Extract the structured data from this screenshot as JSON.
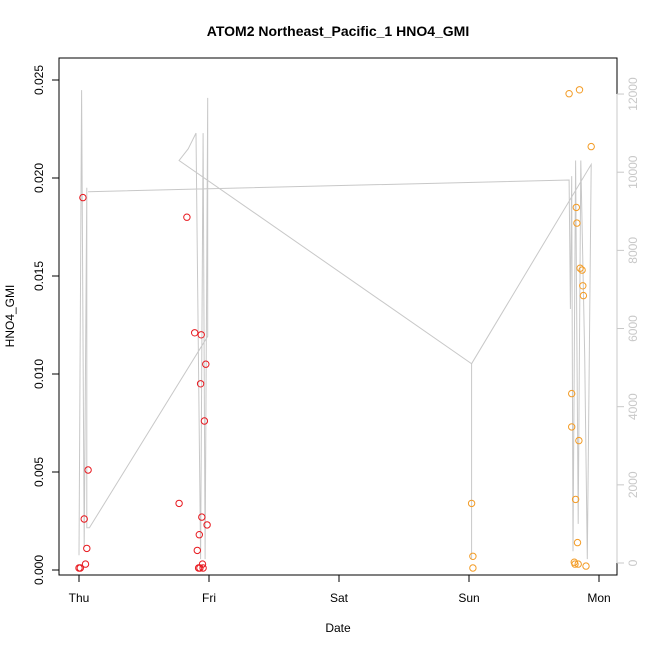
{
  "chart_data": {
    "type": "scatter",
    "title": "ATOM2 Northeast_Pacific_1 HNO4_GMI",
    "xlabel": "Date",
    "ylabel": "HNO4_GMI",
    "ylim": [
      0,
      0.025
    ],
    "y2lim": [
      0,
      12000
    ],
    "xlim": [
      0,
      4
    ],
    "x_ticks": [
      {
        "value": 0,
        "label": "Thu"
      },
      {
        "value": 1,
        "label": "Fri"
      },
      {
        "value": 2,
        "label": "Sat"
      },
      {
        "value": 3,
        "label": "Sun"
      },
      {
        "value": 4,
        "label": "Mon"
      }
    ],
    "y_ticks": [
      {
        "value": 0.0,
        "label": "0.000"
      },
      {
        "value": 0.005,
        "label": "0.005"
      },
      {
        "value": 0.01,
        "label": "0.010"
      },
      {
        "value": 0.015,
        "label": "0.015"
      },
      {
        "value": 0.02,
        "label": "0.020"
      },
      {
        "value": 0.025,
        "label": "0.025"
      }
    ],
    "y2_ticks": [
      {
        "value": 0,
        "label": "0"
      },
      {
        "value": 2000,
        "label": "2000"
      },
      {
        "value": 4000,
        "label": "4000"
      },
      {
        "value": 6000,
        "label": "6000"
      },
      {
        "value": 8000,
        "label": "8000"
      },
      {
        "value": 10000,
        "label": "10000"
      },
      {
        "value": 12000,
        "label": "12000"
      }
    ],
    "colors": {
      "series_red": "#e8191f",
      "series_orange": "#f39c26",
      "altitude_line": "#c8c8c8",
      "axis": "#000000"
    },
    "series": [
      {
        "color": "#e8191f",
        "points": [
          {
            "x": 0.0,
            "y": 0.0001
          },
          {
            "x": 0.01,
            "y": 0.0001
          },
          {
            "x": 0.03,
            "y": 0.019
          },
          {
            "x": 0.04,
            "y": 0.0026
          },
          {
            "x": 0.05,
            "y": 0.0003
          },
          {
            "x": 0.06,
            "y": 0.0011
          },
          {
            "x": 0.07,
            "y": 0.0051
          },
          {
            "x": 0.77,
            "y": 0.0034
          },
          {
            "x": 0.83,
            "y": 0.018
          },
          {
            "x": 0.89,
            "y": 0.0121
          },
          {
            "x": 0.91,
            "y": 0.001
          },
          {
            "x": 0.92,
            "y": 0.0001
          },
          {
            "x": 0.925,
            "y": 0.0018
          },
          {
            "x": 0.93,
            "y": 0.0001
          },
          {
            "x": 0.935,
            "y": 0.0095
          },
          {
            "x": 0.94,
            "y": 0.012
          },
          {
            "x": 0.945,
            "y": 0.0027
          },
          {
            "x": 0.95,
            "y": 0.0003
          },
          {
            "x": 0.955,
            "y": 0.0001
          },
          {
            "x": 0.965,
            "y": 0.0076
          },
          {
            "x": 0.975,
            "y": 0.0105
          },
          {
            "x": 0.985,
            "y": 0.0023
          }
        ]
      },
      {
        "color": "#f39c26",
        "points": [
          {
            "x": 3.02,
            "y": 0.0034
          },
          {
            "x": 3.03,
            "y": 0.0007
          },
          {
            "x": 3.03,
            "y": 0.0001
          },
          {
            "x": 3.77,
            "y": 0.0243
          },
          {
            "x": 3.79,
            "y": 0.009
          },
          {
            "x": 3.79,
            "y": 0.0073
          },
          {
            "x": 3.81,
            "y": 0.0004
          },
          {
            "x": 3.815,
            "y": 0.0003
          },
          {
            "x": 3.82,
            "y": 0.0036
          },
          {
            "x": 3.825,
            "y": 0.0185
          },
          {
            "x": 3.83,
            "y": 0.0177
          },
          {
            "x": 3.835,
            "y": 0.0014
          },
          {
            "x": 3.84,
            "y": 0.0003
          },
          {
            "x": 3.845,
            "y": 0.0066
          },
          {
            "x": 3.85,
            "y": 0.0245
          },
          {
            "x": 3.855,
            "y": 0.0154
          },
          {
            "x": 3.87,
            "y": 0.0153
          },
          {
            "x": 3.875,
            "y": 0.0145
          },
          {
            "x": 3.88,
            "y": 0.014
          },
          {
            "x": 3.9,
            "y": 0.0002
          },
          {
            "x": 3.94,
            "y": 0.0216
          }
        ]
      }
    ],
    "altitude_line": [
      {
        "x": 0.0,
        "y2": 200
      },
      {
        "x": 0.02,
        "y2": 12100
      },
      {
        "x": 0.04,
        "y2": 400
      },
      {
        "x": 0.06,
        "y2": 9600
      },
      {
        "x": 0.06,
        "y2": 9600
      },
      {
        "x": 0.06,
        "y2": 900
      },
      {
        "x": 0.08,
        "y2": 900
      },
      {
        "x": 0.99,
        "y2": 5800
      },
      {
        "x": 0.99,
        "y2": 11900
      },
      {
        "x": 0.97,
        "y2": 100
      },
      {
        "x": 0.955,
        "y2": 11000
      },
      {
        "x": 0.935,
        "y2": 100
      },
      {
        "x": 0.9,
        "y2": 11000
      },
      {
        "x": 0.84,
        "y2": 10600
      },
      {
        "x": 0.77,
        "y2": 10300
      },
      {
        "x": 3.02,
        "y2": 5100
      },
      {
        "x": 3.02,
        "y2": 100
      },
      {
        "x": 3.02,
        "y2": 5100
      },
      {
        "x": 3.94,
        "y2": 10200
      },
      {
        "x": 3.91,
        "y2": 100
      },
      {
        "x": 3.89,
        "y2": 5300
      },
      {
        "x": 3.86,
        "y2": 10300
      },
      {
        "x": 3.84,
        "y2": 1000
      },
      {
        "x": 3.82,
        "y2": 10300
      },
      {
        "x": 3.8,
        "y2": 300
      },
      {
        "x": 3.79,
        "y2": 9900
      },
      {
        "x": 3.78,
        "y2": 6500
      },
      {
        "x": 3.77,
        "y2": 9800
      },
      {
        "x": 0.07,
        "y2": 9500
      }
    ]
  }
}
